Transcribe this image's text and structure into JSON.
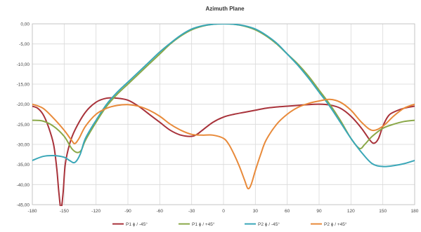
{
  "chart_data": {
    "type": "line",
    "title": "Azimuth Plane",
    "xlabel": "",
    "ylabel": "",
    "xlim": [
      -180,
      180
    ],
    "ylim": [
      -45,
      0
    ],
    "x_ticks": [
      -180,
      -150,
      -120,
      -90,
      -60,
      -30,
      0,
      30,
      60,
      90,
      120,
      150,
      180
    ],
    "y_ticks": [
      0,
      -5,
      -10,
      -15,
      -20,
      -25,
      -30,
      -35,
      -40,
      -45
    ],
    "y_tick_labels": [
      "0,00",
      "-5,00",
      "-10,00",
      "-15,00",
      "-20,00",
      "-25,00",
      "-30,00",
      "-35,00",
      "-40,00",
      "-45,00"
    ],
    "grid": true,
    "legend_position": "bottom",
    "series": [
      {
        "name": "P1 ϕ / -45°",
        "color": "#a8323a",
        "points": [
          [
            -180,
            -20.5
          ],
          [
            -175,
            -21
          ],
          [
            -170,
            -22.5
          ],
          [
            -165,
            -25.5
          ],
          [
            -160,
            -30
          ],
          [
            -157,
            -36
          ],
          [
            -155,
            -42
          ],
          [
            -153,
            -46
          ],
          [
            -151,
            -42
          ],
          [
            -149,
            -35
          ],
          [
            -145,
            -30
          ],
          [
            -140,
            -26.5
          ],
          [
            -130,
            -22
          ],
          [
            -120,
            -19.5
          ],
          [
            -110,
            -18.5
          ],
          [
            -100,
            -18.5
          ],
          [
            -90,
            -19
          ],
          [
            -80,
            -20.5
          ],
          [
            -70,
            -22.5
          ],
          [
            -60,
            -24.5
          ],
          [
            -50,
            -26.5
          ],
          [
            -40,
            -27.7
          ],
          [
            -30,
            -28
          ],
          [
            -25,
            -27.5
          ],
          [
            -20,
            -26.5
          ],
          [
            -10,
            -24.5
          ],
          [
            0,
            -23.2
          ],
          [
            10,
            -22.5
          ],
          [
            20,
            -22
          ],
          [
            30,
            -21.5
          ],
          [
            40,
            -21
          ],
          [
            50,
            -20.7
          ],
          [
            60,
            -20.5
          ],
          [
            70,
            -20.3
          ],
          [
            80,
            -20.1
          ],
          [
            90,
            -20
          ],
          [
            100,
            -20.2
          ],
          [
            110,
            -21
          ],
          [
            120,
            -23
          ],
          [
            130,
            -26
          ],
          [
            138,
            -29
          ],
          [
            142,
            -29.7
          ],
          [
            146,
            -28.5
          ],
          [
            150,
            -25.5
          ],
          [
            155,
            -23
          ],
          [
            160,
            -22
          ],
          [
            170,
            -21
          ],
          [
            180,
            -20.5
          ]
        ]
      },
      {
        "name": "P1 ϕ / +45°",
        "color": "#8aa848",
        "points": [
          [
            -180,
            -24
          ],
          [
            -170,
            -24.2
          ],
          [
            -160,
            -25.5
          ],
          [
            -150,
            -28
          ],
          [
            -143,
            -31
          ],
          [
            -138,
            -32
          ],
          [
            -134,
            -31.5
          ],
          [
            -130,
            -29
          ],
          [
            -120,
            -24.5
          ],
          [
            -110,
            -20.5
          ],
          [
            -100,
            -17.5
          ],
          [
            -90,
            -15
          ],
          [
            -80,
            -12.5
          ],
          [
            -70,
            -10
          ],
          [
            -60,
            -7.5
          ],
          [
            -50,
            -5
          ],
          [
            -40,
            -3
          ],
          [
            -30,
            -1.5
          ],
          [
            -20,
            -0.6
          ],
          [
            -10,
            -0.1
          ],
          [
            0,
            0
          ],
          [
            10,
            -0.1
          ],
          [
            20,
            -0.6
          ],
          [
            30,
            -1.5
          ],
          [
            40,
            -3
          ],
          [
            50,
            -5
          ],
          [
            60,
            -7.5
          ],
          [
            70,
            -10
          ],
          [
            80,
            -13
          ],
          [
            90,
            -16.5
          ],
          [
            100,
            -20
          ],
          [
            110,
            -24
          ],
          [
            120,
            -28.5
          ],
          [
            128,
            -31
          ],
          [
            133,
            -30
          ],
          [
            140,
            -28
          ],
          [
            150,
            -26
          ],
          [
            160,
            -25
          ],
          [
            170,
            -24.3
          ],
          [
            180,
            -24
          ]
        ]
      },
      {
        "name": "P2 ϕ / -45°",
        "color": "#3aa7b8",
        "points": [
          [
            -180,
            -34
          ],
          [
            -170,
            -33
          ],
          [
            -160,
            -32.8
          ],
          [
            -150,
            -33.2
          ],
          [
            -145,
            -34
          ],
          [
            -140,
            -34.5
          ],
          [
            -135,
            -32.5
          ],
          [
            -130,
            -28.5
          ],
          [
            -120,
            -24
          ],
          [
            -110,
            -20
          ],
          [
            -100,
            -17
          ],
          [
            -90,
            -14.5
          ],
          [
            -80,
            -12
          ],
          [
            -70,
            -9.5
          ],
          [
            -60,
            -7
          ],
          [
            -50,
            -4.8
          ],
          [
            -40,
            -2.8
          ],
          [
            -30,
            -1.3
          ],
          [
            -20,
            -0.5
          ],
          [
            -10,
            -0.1
          ],
          [
            0,
            0
          ],
          [
            10,
            -0.1
          ],
          [
            20,
            -0.5
          ],
          [
            30,
            -1.3
          ],
          [
            40,
            -2.8
          ],
          [
            50,
            -4.8
          ],
          [
            60,
            -7.5
          ],
          [
            70,
            -10.3
          ],
          [
            80,
            -13.5
          ],
          [
            90,
            -17
          ],
          [
            100,
            -20.5
          ],
          [
            110,
            -24.5
          ],
          [
            120,
            -28.5
          ],
          [
            130,
            -32
          ],
          [
            140,
            -34.8
          ],
          [
            150,
            -35.5
          ],
          [
            160,
            -35.3
          ],
          [
            170,
            -34.8
          ],
          [
            180,
            -34
          ]
        ]
      },
      {
        "name": "P2 ϕ / +45°",
        "color": "#e88a3a",
        "points": [
          [
            -180,
            -20
          ],
          [
            -170,
            -21
          ],
          [
            -160,
            -23.5
          ],
          [
            -150,
            -26.5
          ],
          [
            -143,
            -29
          ],
          [
            -140,
            -29.8
          ],
          [
            -136,
            -28.5
          ],
          [
            -130,
            -25.5
          ],
          [
            -120,
            -22.5
          ],
          [
            -110,
            -21
          ],
          [
            -100,
            -20.3
          ],
          [
            -90,
            -20.1
          ],
          [
            -80,
            -20.5
          ],
          [
            -70,
            -21.5
          ],
          [
            -60,
            -23
          ],
          [
            -50,
            -25
          ],
          [
            -40,
            -26.5
          ],
          [
            -30,
            -27.5
          ],
          [
            -20,
            -27.7
          ],
          [
            -10,
            -27.7
          ],
          [
            0,
            -28.5
          ],
          [
            5,
            -30
          ],
          [
            10,
            -32.5
          ],
          [
            15,
            -35.5
          ],
          [
            20,
            -39
          ],
          [
            23,
            -41
          ],
          [
            26,
            -40
          ],
          [
            30,
            -36.5
          ],
          [
            35,
            -32.5
          ],
          [
            40,
            -29
          ],
          [
            50,
            -25
          ],
          [
            60,
            -22.5
          ],
          [
            70,
            -20.8
          ],
          [
            80,
            -19.8
          ],
          [
            90,
            -19.2
          ],
          [
            100,
            -18.8
          ],
          [
            110,
            -19.5
          ],
          [
            120,
            -21.5
          ],
          [
            130,
            -24.5
          ],
          [
            140,
            -26.5
          ],
          [
            150,
            -25.5
          ],
          [
            160,
            -23
          ],
          [
            170,
            -21
          ],
          [
            180,
            -20
          ]
        ]
      }
    ]
  }
}
